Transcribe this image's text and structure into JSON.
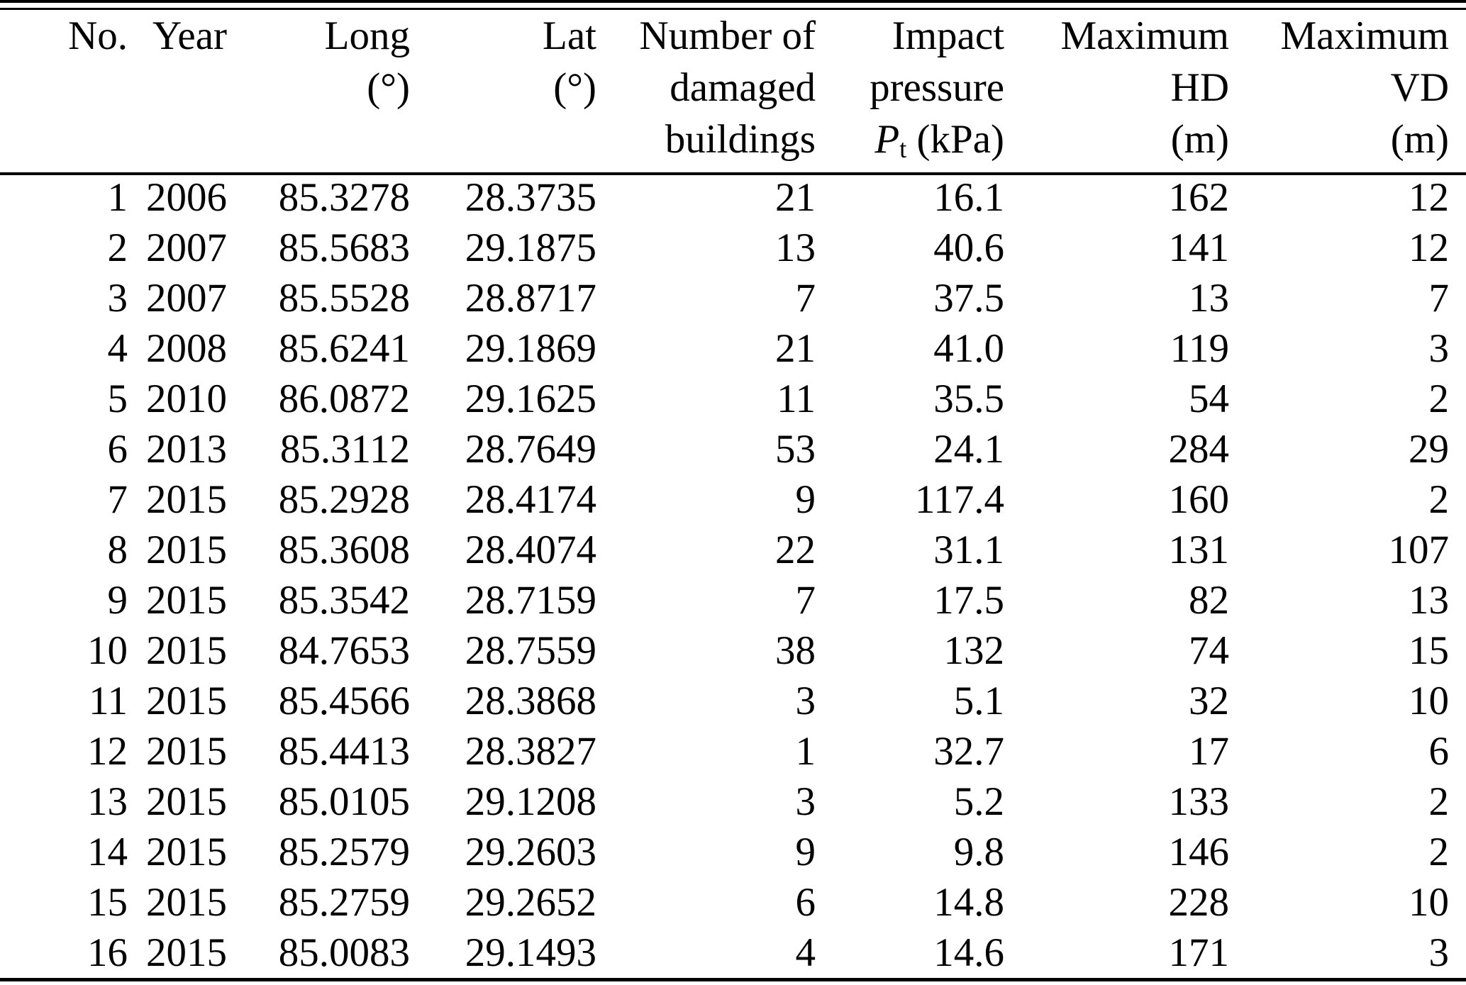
{
  "table": {
    "columns": [
      {
        "id": "no",
        "line1": "No.",
        "line2": "",
        "line3": ""
      },
      {
        "id": "year",
        "line1": "Year",
        "line2": "",
        "line3": ""
      },
      {
        "id": "long",
        "line1": "Long",
        "line2": "(°)",
        "line3": ""
      },
      {
        "id": "lat",
        "line1": "Lat",
        "line2": "(°)",
        "line3": ""
      },
      {
        "id": "damaged",
        "line1": "Number of",
        "line2": "damaged",
        "line3": "buildings"
      },
      {
        "id": "pressure",
        "line1": "Impact",
        "line2": "pressure",
        "line3_italic": "P",
        "line3_sub": "t",
        "line3_rest": " (kPa)"
      },
      {
        "id": "hd",
        "line1": "Maximum",
        "line2": "HD",
        "line3": "(m)"
      },
      {
        "id": "vd",
        "line1": "Maximum",
        "line2": "VD",
        "line3": "(m)"
      }
    ],
    "rows": [
      [
        "1",
        "2006",
        "85.3278",
        "28.3735",
        "21",
        "16.1",
        "162",
        "12"
      ],
      [
        "2",
        "2007",
        "85.5683",
        "29.1875",
        "13",
        "40.6",
        "141",
        "12"
      ],
      [
        "3",
        "2007",
        "85.5528",
        "28.8717",
        "7",
        "37.5",
        "13",
        "7"
      ],
      [
        "4",
        "2008",
        "85.6241",
        "29.1869",
        "21",
        "41.0",
        "119",
        "3"
      ],
      [
        "5",
        "2010",
        "86.0872",
        "29.1625",
        "11",
        "35.5",
        "54",
        "2"
      ],
      [
        "6",
        "2013",
        "85.3112",
        "28.7649",
        "53",
        "24.1",
        "284",
        "29"
      ],
      [
        "7",
        "2015",
        "85.2928",
        "28.4174",
        "9",
        "117.4",
        "160",
        "2"
      ],
      [
        "8",
        "2015",
        "85.3608",
        "28.4074",
        "22",
        "31.1",
        "131",
        "107"
      ],
      [
        "9",
        "2015",
        "85.3542",
        "28.7159",
        "7",
        "17.5",
        "82",
        "13"
      ],
      [
        "10",
        "2015",
        "84.7653",
        "28.7559",
        "38",
        "132",
        "74",
        "15"
      ],
      [
        "11",
        "2015",
        "85.4566",
        "28.3868",
        "3",
        "5.1",
        "32",
        "10"
      ],
      [
        "12",
        "2015",
        "85.4413",
        "28.3827",
        "1",
        "32.7",
        "17",
        "6"
      ],
      [
        "13",
        "2015",
        "85.0105",
        "29.1208",
        "3",
        "5.2",
        "133",
        "2"
      ],
      [
        "14",
        "2015",
        "85.2579",
        "29.2603",
        "9",
        "9.8",
        "146",
        "2"
      ],
      [
        "15",
        "2015",
        "85.2759",
        "29.2652",
        "6",
        "14.8",
        "228",
        "10"
      ],
      [
        "16",
        "2015",
        "85.0083",
        "29.1493",
        "4",
        "14.6",
        "171",
        "3"
      ]
    ]
  }
}
